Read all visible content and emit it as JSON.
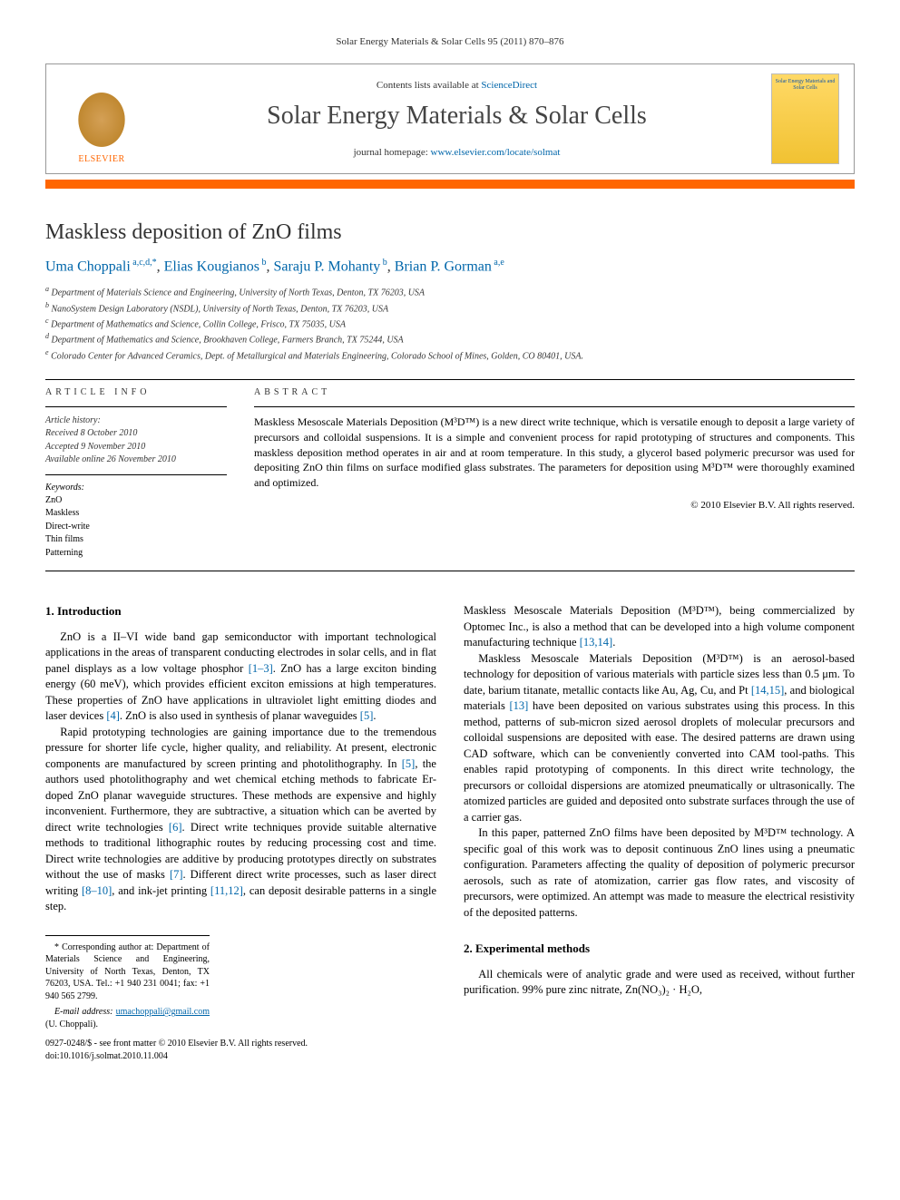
{
  "running_header": "Solar Energy Materials & Solar Cells 95 (2011) 870–876",
  "masthead": {
    "publisher": "ELSEVIER",
    "contents_prefix": "Contents lists available at ",
    "contents_link": "ScienceDirect",
    "journal": "Solar Energy Materials & Solar Cells",
    "homepage_prefix": "journal homepage: ",
    "homepage_link": "www.elsevier.com/locate/solmat",
    "cover_text": "Solar Energy Materials and Solar Cells"
  },
  "title": "Maskless deposition of ZnO films",
  "authors_html": "Uma Choppali",
  "author_list": [
    {
      "name": "Uma Choppali",
      "marks": "a,c,d,*"
    },
    {
      "name": "Elias Kougianos",
      "marks": "b"
    },
    {
      "name": "Saraju P. Mohanty",
      "marks": "b"
    },
    {
      "name": "Brian P. Gorman",
      "marks": "a,e"
    }
  ],
  "affiliations": [
    {
      "mark": "a",
      "text": "Department of Materials Science and Engineering, University of North Texas, Denton, TX 76203, USA"
    },
    {
      "mark": "b",
      "text": "NanoSystem Design Laboratory (NSDL), University of North Texas, Denton, TX 76203, USA"
    },
    {
      "mark": "c",
      "text": "Department of Mathematics and Science, Collin College, Frisco, TX 75035, USA"
    },
    {
      "mark": "d",
      "text": "Department of Mathematics and Science, Brookhaven College, Farmers Branch, TX 75244, USA"
    },
    {
      "mark": "e",
      "text": "Colorado Center for Advanced Ceramics, Dept. of Metallurgical and Materials Engineering, Colorado School of Mines, Golden, CO 80401, USA."
    }
  ],
  "article_info": {
    "heading": "ARTICLE INFO",
    "history_label": "Article history:",
    "history": [
      "Received 8 October 2010",
      "Accepted 9 November 2010",
      "Available online 26 November 2010"
    ],
    "keywords_label": "Keywords:",
    "keywords": [
      "ZnO",
      "Maskless",
      "Direct-write",
      "Thin films",
      "Patterning"
    ]
  },
  "abstract": {
    "heading": "ABSTRACT",
    "text": "Maskless Mesoscale Materials Deposition (M³D™) is a new direct write technique, which is versatile enough to deposit a large variety of precursors and colloidal suspensions. It is a simple and convenient process for rapid prototyping of structures and components. This maskless deposition method operates in air and at room temperature. In this study, a glycerol based polymeric precursor was used for depositing ZnO thin films on surface modified glass substrates. The parameters for deposition using M³D™ were thoroughly examined and optimized.",
    "copyright": "© 2010 Elsevier B.V. All rights reserved."
  },
  "sections": {
    "intro_heading": "1.  Introduction",
    "intro_p1": "ZnO is a II–VI wide band gap semiconductor with important technological applications in the areas of transparent conducting electrodes in solar cells, and in flat panel displays as a low voltage phosphor [1–3]. ZnO has a large exciton binding energy (60 meV), which provides efficient exciton emissions at high temperatures. These properties of ZnO have applications in ultraviolet light emitting diodes and laser devices [4]. ZnO is also used in synthesis of planar waveguides [5].",
    "intro_p2": "Rapid prototyping technologies are gaining importance due to the tremendous pressure for shorter life cycle, higher quality, and reliability. At present, electronic components are manufactured by screen printing and photolithography. In [5], the authors used photolithography and wet chemical etching methods to fabricate Er-doped ZnO planar waveguide structures. These methods are expensive and highly inconvenient. Furthermore, they are subtractive, a situation which can be averted by direct write technologies [6]. Direct write techniques provide suitable alternative methods to traditional lithographic routes by reducing processing cost and time. Direct write technologies are additive by producing prototypes directly on substrates without the use of masks [7]. Different direct write processes, such as laser direct writing [8–10], and ink-jet printing [11,12], can deposit desirable patterns in a single step.",
    "intro_p3": "Maskless Mesoscale Materials Deposition (M³D™), being commercialized by Optomec Inc., is also a method that can be developed into a high volume component manufacturing technique [13,14].",
    "intro_p4": "Maskless Mesoscale Materials Deposition (M³D™) is an aerosol-based technology for deposition of various materials with particle sizes less than 0.5 μm. To date, barium titanate, metallic contacts like Au, Ag, Cu, and Pt [14,15], and biological materials [13] have been deposited on various substrates using this process. In this method, patterns of sub-micron sized aerosol droplets of molecular precursors and colloidal suspensions are deposited with ease. The desired patterns are drawn using CAD software, which can be conveniently converted into CAM tool-paths. This enables rapid prototyping of components. In this direct write technology, the precursors or colloidal dispersions are atomized pneumatically or ultrasonically. The atomized particles are guided and deposited onto substrate surfaces through the use of a carrier gas.",
    "intro_p5": "In this paper, patterned ZnO films have been deposited by M³D™ technology. A specific goal of this work was to deposit continuous ZnO lines using a pneumatic configuration. Parameters affecting the quality of deposition of polymeric precursor aerosols, such as rate of atomization, carrier gas flow rates, and viscosity of precursors, were optimized. An attempt was made to measure the electrical resistivity of the deposited patterns.",
    "exp_heading": "2.  Experimental methods",
    "exp_p1": "All chemicals were of analytic grade and were used as received, without further purification. 99% pure zinc nitrate, Zn(NO₃)₂ · H₂O,"
  },
  "footnote": {
    "corr": "* Corresponding author at: Department of Materials Science and Engineering, University of North Texas, Denton, TX 76203, USA. Tel.: +1 940 231 0041; fax: +1 940 565 2799.",
    "email_label": "E-mail address:",
    "email": "umachoppali@gmail.com",
    "email_name": "(U. Choppali)."
  },
  "doi": {
    "line1": "0927-0248/$ - see front matter © 2010 Elsevier B.V. All rights reserved.",
    "line2": "doi:10.1016/j.solmat.2010.11.004"
  },
  "colors": {
    "accent_orange": "#ff6600",
    "link_blue": "#0066aa",
    "cover_yellow": "#f1c232"
  }
}
